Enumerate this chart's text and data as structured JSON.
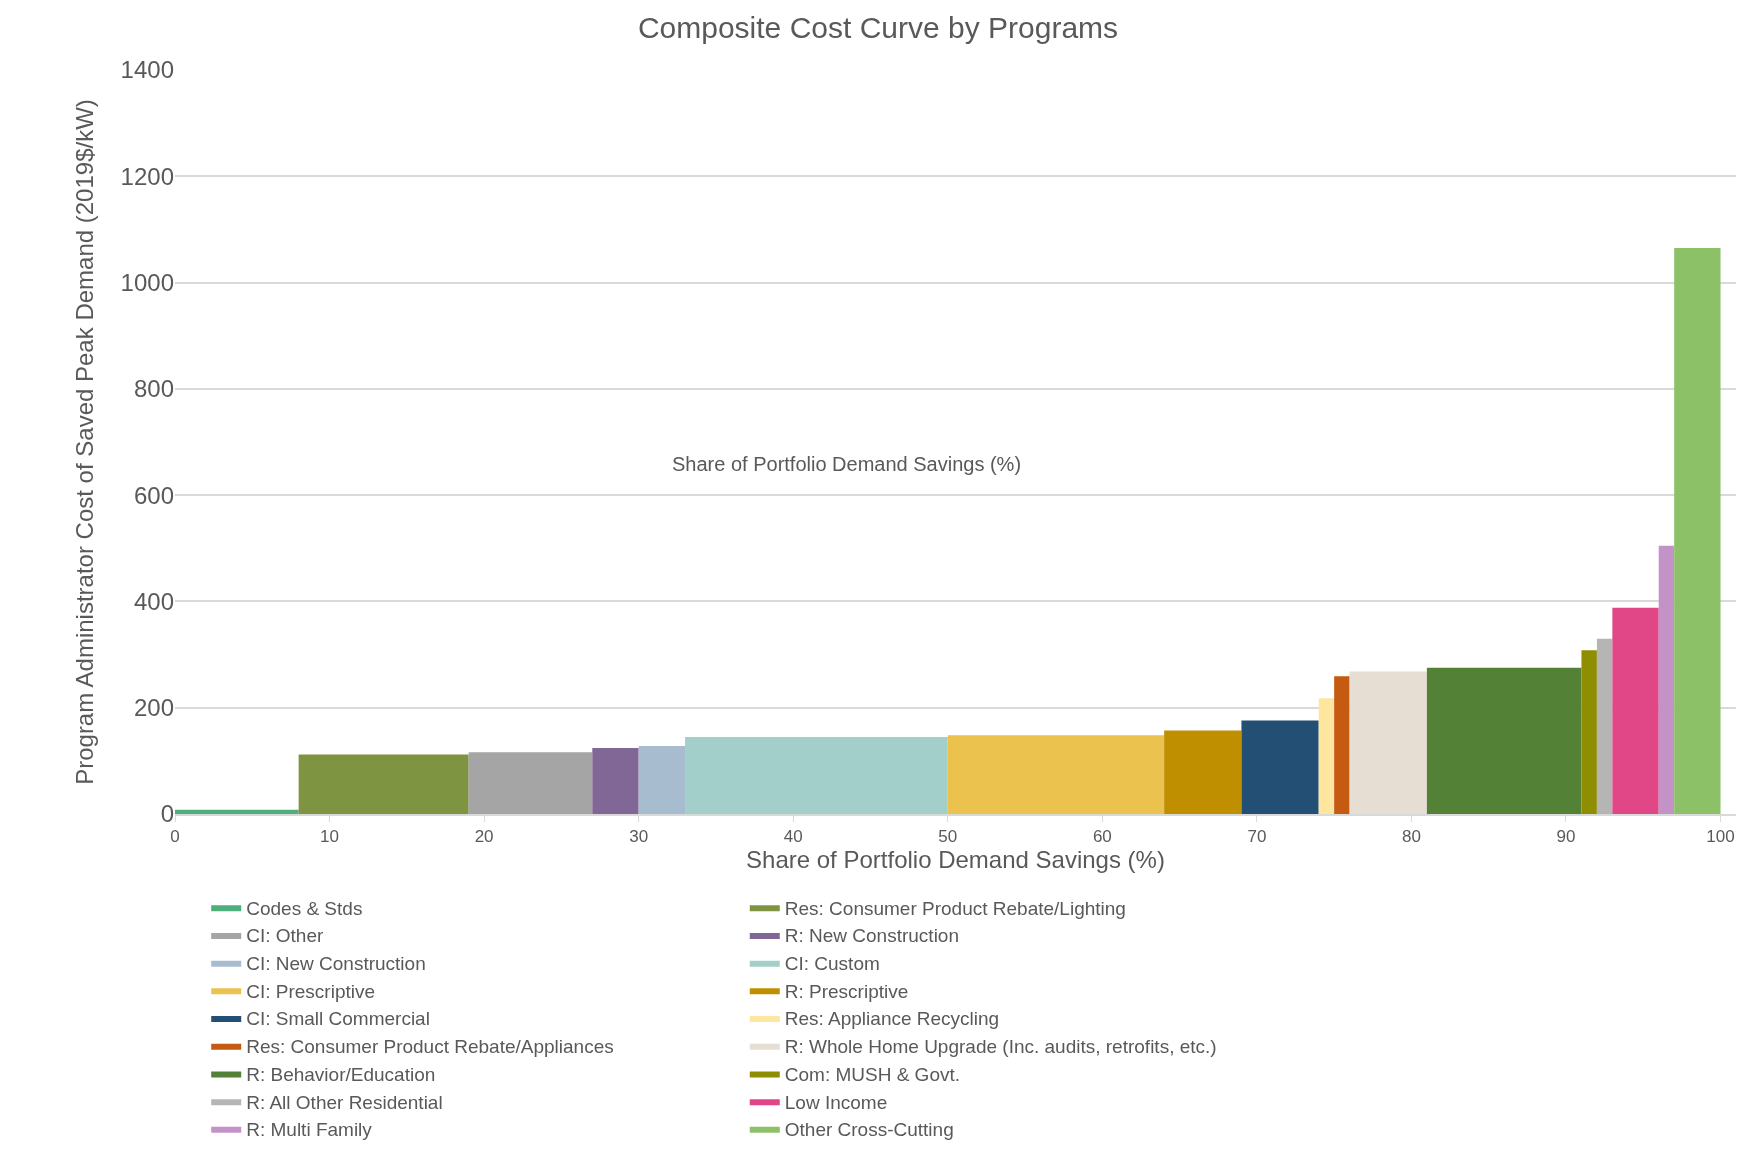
{
  "chart_data": {
    "type": "area",
    "title": "Composite Cost Curve by Programs",
    "xlabel": "Share of Portfolio Demand Savings (%)",
    "ylabel": "Program Administrator Cost of Saved Peak Demand (2019$/kW)",
    "annotations": [
      "Share of Portfolio Demand Savings (%)"
    ],
    "xlim": [
      0,
      101
    ],
    "xticks": [
      0,
      10,
      20,
      30,
      40,
      50,
      60,
      70,
      80,
      90,
      100
    ],
    "ylim": [
      0,
      1400
    ],
    "yticks": [
      0,
      200,
      400,
      600,
      800,
      1000,
      1200,
      1400
    ],
    "grid": "y",
    "legend": "bottom",
    "series": [
      {
        "name": "Codes & Stds",
        "color": "#4eae7c",
        "x": [
          0,
          8
        ],
        "values": [
          8,
          8
        ]
      },
      {
        "name": "Res: Consumer Product Rebate/Lighting",
        "color": "#7e9441",
        "x": [
          8,
          19
        ],
        "values": [
          112,
          112
        ]
      },
      {
        "name": "CI: Other",
        "color": "#a5a5a5",
        "x": [
          19,
          27
        ],
        "values": [
          116,
          116
        ]
      },
      {
        "name": "R: New Construction",
        "color": "#816795",
        "x": [
          27,
          30
        ],
        "values": [
          124,
          124
        ]
      },
      {
        "name": "CI: New Construction",
        "color": "#a7bdcf",
        "x": [
          30,
          33
        ],
        "values": [
          128,
          128
        ]
      },
      {
        "name": "CI: Custom",
        "color": "#a2cfc9",
        "x": [
          33,
          50
        ],
        "values": [
          145,
          145
        ]
      },
      {
        "name": "CI: Prescriptive",
        "color": "#eac24d",
        "x": [
          50,
          64
        ],
        "values": [
          148,
          148
        ]
      },
      {
        "name": "R: Prescriptive",
        "color": "#bf8f00",
        "x": [
          64,
          69
        ],
        "values": [
          157,
          157
        ]
      },
      {
        "name": "CI: Small Commercial",
        "color": "#244f75",
        "x": [
          69,
          74
        ],
        "values": [
          176,
          176
        ]
      },
      {
        "name": "Res: Appliance Recycling",
        "color": "#fee69f",
        "x": [
          74,
          75
        ],
        "values": [
          218,
          218
        ]
      },
      {
        "name": "Res: Consumer Product Rebate/Appliances",
        "color": "#c55a11",
        "x": [
          75,
          76
        ],
        "values": [
          259,
          259
        ]
      },
      {
        "name": "R: Whole Home Upgrade (Inc. audits, retrofits, etc.)",
        "color": "#e6ddd3",
        "x": [
          76,
          81
        ],
        "values": [
          268,
          268
        ]
      },
      {
        "name": "R: Behavior/Education",
        "color": "#538135",
        "x": [
          81,
          91
        ],
        "values": [
          275,
          275
        ]
      },
      {
        "name": "Com: MUSH & Govt.",
        "color": "#8e8e00",
        "x": [
          91,
          92
        ],
        "values": [
          308,
          308
        ]
      },
      {
        "name": "R: All Other Residential",
        "color": "#b5b5b5",
        "x": [
          92,
          93
        ],
        "values": [
          330,
          330
        ]
      },
      {
        "name": "Low Income",
        "color": "#e14687",
        "x": [
          93,
          96
        ],
        "values": [
          388,
          388
        ]
      },
      {
        "name": "R: Multi Family",
        "color": "#c393c8",
        "x": [
          96,
          97
        ],
        "values": [
          505,
          505
        ]
      },
      {
        "name": "Other Cross-Cutting",
        "color": "#8cc168",
        "x": [
          97,
          100
        ],
        "values": [
          1065,
          1065
        ]
      }
    ]
  }
}
